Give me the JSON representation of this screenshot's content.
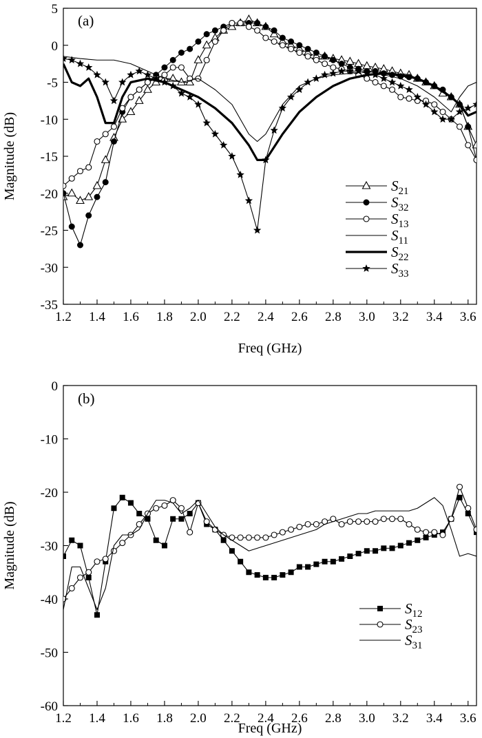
{
  "chart_data": [
    {
      "type": "line",
      "panel_label": "(a)",
      "xlabel": "Freq (GHz)",
      "ylabel": "Magnitude (dB)",
      "xlim": [
        1.2,
        3.65
      ],
      "ylim": [
        -35,
        5
      ],
      "xticks": [
        1.2,
        1.4,
        1.6,
        1.8,
        2.0,
        2.2,
        2.4,
        2.6,
        2.8,
        3.0,
        3.2,
        3.4,
        3.6
      ],
      "yticks": [
        5,
        0,
        -5,
        -10,
        -15,
        -20,
        -25,
        -30,
        -35
      ],
      "xtick_labels": [
        "1.2",
        "1.4",
        "1.6",
        "1.8",
        "2.0",
        "2.2",
        "2.4",
        "2.6",
        "2.8",
        "3.0",
        "3.2",
        "3.4",
        "3.6"
      ],
      "ytick_labels": [
        "5",
        "0",
        "-5",
        "-10",
        "-15",
        "-20",
        "-25",
        "-30",
        "-35"
      ],
      "grid": false,
      "legend_position": "lower-right",
      "series": [
        {
          "name_main": "S",
          "name_sub": "21",
          "marker": "triangle",
          "stroke": "thin",
          "x": [
            1.2,
            1.25,
            1.3,
            1.35,
            1.4,
            1.45,
            1.5,
            1.55,
            1.6,
            1.65,
            1.7,
            1.75,
            1.8,
            1.85,
            1.9,
            1.95,
            2.0,
            2.05,
            2.1,
            2.15,
            2.2,
            2.25,
            2.3,
            2.35,
            2.4,
            2.45,
            2.5,
            2.55,
            2.6,
            2.65,
            2.7,
            2.75,
            2.8,
            2.85,
            2.9,
            2.95,
            3.0,
            3.05,
            3.1,
            3.15,
            3.2,
            3.25,
            3.3,
            3.35,
            3.4,
            3.45,
            3.5,
            3.55,
            3.6,
            3.65
          ],
          "y": [
            -20.5,
            -20,
            -21,
            -20.5,
            -19,
            -15.5,
            -12.5,
            -10,
            -9,
            -7.5,
            -6,
            -5,
            -4.5,
            -4.5,
            -5,
            -5,
            -2,
            0,
            1,
            2,
            2.5,
            3,
            3.5,
            3,
            2.5,
            1.5,
            0.5,
            0,
            -0.5,
            -1,
            -1.5,
            -1.5,
            -1.8,
            -2,
            -2.2,
            -2.5,
            -2.8,
            -3,
            -3.2,
            -3.5,
            -3.8,
            -4,
            -4.5,
            -5,
            -5.5,
            -6.5,
            -7,
            -8,
            -11,
            -13.5
          ]
        },
        {
          "name_main": "S",
          "name_sub": "32",
          "marker": "filled-circle",
          "stroke": "thin",
          "x": [
            1.2,
            1.25,
            1.3,
            1.35,
            1.4,
            1.45,
            1.5,
            1.55,
            1.6,
            1.65,
            1.7,
            1.75,
            1.8,
            1.85,
            1.9,
            1.95,
            2.0,
            2.05,
            2.1,
            2.15,
            2.2,
            2.25,
            2.3,
            2.35,
            2.4,
            2.45,
            2.5,
            2.55,
            2.6,
            2.65,
            2.7,
            2.75,
            2.8,
            2.85,
            2.9,
            2.95,
            3.0,
            3.05,
            3.1,
            3.15,
            3.2,
            3.25,
            3.3,
            3.35,
            3.4,
            3.45,
            3.5,
            3.55,
            3.6,
            3.65
          ],
          "y": [
            -20,
            -24.5,
            -27,
            -23,
            -20.5,
            -18.5,
            -13,
            -9,
            -7,
            -6,
            -5,
            -4,
            -3,
            -2,
            -1,
            -0.5,
            0.5,
            1.5,
            2,
            2.5,
            3,
            3,
            3,
            3,
            2.5,
            2,
            1,
            0.5,
            0,
            -0.5,
            -1,
            -1.5,
            -2,
            -2.5,
            -3,
            -3.2,
            -3.5,
            -3.5,
            -3.8,
            -4,
            -4.2,
            -4.3,
            -4.5,
            -5,
            -5.5,
            -6,
            -7,
            -8,
            -11,
            -15.5
          ]
        },
        {
          "name_main": "S",
          "name_sub": "13",
          "marker": "open-circle",
          "stroke": "thin",
          "x": [
            1.2,
            1.25,
            1.3,
            1.35,
            1.4,
            1.45,
            1.5,
            1.55,
            1.6,
            1.65,
            1.7,
            1.75,
            1.8,
            1.85,
            1.9,
            1.95,
            2.0,
            2.05,
            2.1,
            2.15,
            2.2,
            2.25,
            2.3,
            2.35,
            2.4,
            2.45,
            2.5,
            2.55,
            2.6,
            2.65,
            2.7,
            2.75,
            2.8,
            2.85,
            2.9,
            2.95,
            3.0,
            3.05,
            3.1,
            3.15,
            3.2,
            3.25,
            3.3,
            3.35,
            3.4,
            3.45,
            3.5,
            3.55,
            3.6,
            3.65
          ],
          "y": [
            -19,
            -18,
            -17,
            -16.5,
            -13,
            -12,
            -11,
            -8.5,
            -7,
            -6,
            -5,
            -4.5,
            -4,
            -3,
            -3,
            -4.5,
            -4.5,
            -2,
            0.5,
            2,
            3,
            3,
            2.5,
            2,
            1,
            0.5,
            0,
            -0.5,
            -1,
            -1.5,
            -2,
            -2.5,
            -3,
            -3.2,
            -3.5,
            -4,
            -4.5,
            -5,
            -5.5,
            -6,
            -7,
            -7.2,
            -7.5,
            -7.5,
            -8,
            -9,
            -10,
            -11,
            -13.5,
            -15.5
          ]
        },
        {
          "name_main": "S",
          "name_sub": "11",
          "marker": "none",
          "stroke": "thin",
          "x": [
            1.2,
            1.3,
            1.4,
            1.5,
            1.6,
            1.7,
            1.8,
            1.9,
            2.0,
            2.1,
            2.2,
            2.3,
            2.35,
            2.4,
            2.5,
            2.6,
            2.7,
            2.8,
            2.9,
            3.0,
            3.1,
            3.2,
            3.3,
            3.4,
            3.5,
            3.55,
            3.6,
            3.65
          ],
          "y": [
            -1.5,
            -1.8,
            -2,
            -2,
            -2.5,
            -3.5,
            -4.5,
            -5,
            -4.5,
            -6,
            -8,
            -12,
            -13,
            -12,
            -8,
            -5.5,
            -4.5,
            -4,
            -3.8,
            -3.5,
            -4,
            -4.5,
            -5.5,
            -7,
            -9,
            -7,
            -5.5,
            -5
          ]
        },
        {
          "name_main": "S",
          "name_sub": "22",
          "marker": "none",
          "stroke": "thick",
          "x": [
            1.2,
            1.25,
            1.3,
            1.35,
            1.4,
            1.45,
            1.5,
            1.55,
            1.6,
            1.7,
            1.8,
            1.9,
            2.0,
            2.1,
            2.2,
            2.3,
            2.35,
            2.4,
            2.5,
            2.6,
            2.7,
            2.8,
            2.9,
            3.0,
            3.1,
            3.2,
            3.3,
            3.4,
            3.5,
            3.55,
            3.6,
            3.65
          ],
          "y": [
            -2.5,
            -5,
            -5.5,
            -4.5,
            -7,
            -10.5,
            -10.5,
            -7,
            -5,
            -4.5,
            -5,
            -6,
            -7,
            -8.5,
            -10.5,
            -13.5,
            -15.5,
            -15.5,
            -12,
            -9,
            -7,
            -5.5,
            -4.5,
            -4,
            -3.8,
            -4,
            -4.5,
            -5.5,
            -7,
            -8,
            -9.5,
            -9
          ]
        },
        {
          "name_main": "S",
          "name_sub": "33",
          "marker": "star",
          "stroke": "thin",
          "x": [
            1.2,
            1.25,
            1.3,
            1.35,
            1.4,
            1.45,
            1.5,
            1.55,
            1.6,
            1.65,
            1.7,
            1.75,
            1.8,
            1.85,
            1.9,
            1.95,
            2.0,
            2.05,
            2.1,
            2.15,
            2.2,
            2.25,
            2.3,
            2.35,
            2.4,
            2.45,
            2.5,
            2.55,
            2.6,
            2.65,
            2.7,
            2.75,
            2.8,
            2.85,
            2.9,
            2.95,
            3.0,
            3.05,
            3.1,
            3.15,
            3.2,
            3.25,
            3.3,
            3.35,
            3.4,
            3.45,
            3.5,
            3.55,
            3.6,
            3.65
          ],
          "y": [
            -1.8,
            -2,
            -2.5,
            -3,
            -4,
            -5,
            -7.5,
            -5,
            -4,
            -3.5,
            -4,
            -4.5,
            -5,
            -5.5,
            -6.5,
            -7,
            -8,
            -10.5,
            -12,
            -13.5,
            -15,
            -17.5,
            -21,
            -25,
            -15.5,
            -11.5,
            -8.5,
            -7,
            -6,
            -5,
            -4.5,
            -4,
            -3.8,
            -3.5,
            -3.5,
            -3.5,
            -3.8,
            -4,
            -4.5,
            -5,
            -5.5,
            -6,
            -7,
            -8,
            -9,
            -10,
            -10,
            -9,
            -8.5,
            -8
          ]
        }
      ]
    },
    {
      "type": "line",
      "panel_label": "(b)",
      "xlabel": "Freq (GHz)",
      "ylabel": "Magnitude (dB)",
      "xlim": [
        1.2,
        3.65
      ],
      "ylim": [
        -60,
        0
      ],
      "xticks": [
        1.2,
        1.4,
        1.6,
        1.8,
        2.0,
        2.2,
        2.4,
        2.6,
        2.8,
        3.0,
        3.2,
        3.4,
        3.6
      ],
      "yticks": [
        0,
        -10,
        -20,
        -30,
        -40,
        -50,
        -60
      ],
      "xtick_labels": [
        "1.2",
        "1.4",
        "1.6",
        "1.8",
        "2.0",
        "2.2",
        "2.4",
        "2.6",
        "2.8",
        "3.0",
        "3.2",
        "3.4",
        "3.6"
      ],
      "ytick_labels": [
        "0",
        "-10",
        "-20",
        "-30",
        "-40",
        "-50",
        "-60"
      ],
      "grid": false,
      "legend_position": "lower-right",
      "series": [
        {
          "name_main": "S",
          "name_sub": "12",
          "marker": "filled-square",
          "stroke": "thin",
          "x": [
            1.2,
            1.25,
            1.3,
            1.35,
            1.4,
            1.45,
            1.5,
            1.55,
            1.6,
            1.65,
            1.7,
            1.75,
            1.8,
            1.85,
            1.9,
            1.95,
            2.0,
            2.05,
            2.1,
            2.15,
            2.2,
            2.25,
            2.3,
            2.35,
            2.4,
            2.45,
            2.5,
            2.55,
            2.6,
            2.65,
            2.7,
            2.75,
            2.8,
            2.85,
            2.9,
            2.95,
            3.0,
            3.05,
            3.1,
            3.15,
            3.2,
            3.25,
            3.3,
            3.35,
            3.4,
            3.45,
            3.5,
            3.55,
            3.6,
            3.65
          ],
          "y": [
            -32,
            -29,
            -30,
            -36,
            -43,
            -33,
            -23,
            -21,
            -22,
            -24,
            -25,
            -29,
            -30,
            -25,
            -25,
            -24,
            -22,
            -26,
            -27,
            -29,
            -31,
            -33,
            -35,
            -35.5,
            -36,
            -36,
            -35.5,
            -35,
            -34,
            -34,
            -33.5,
            -33,
            -33,
            -32.5,
            -32,
            -31.5,
            -31,
            -31,
            -30.5,
            -30.5,
            -30,
            -29.5,
            -29,
            -28.5,
            -28,
            -27.5,
            -25,
            -21,
            -24,
            -27.5
          ]
        },
        {
          "name_main": "S",
          "name_sub": "23",
          "marker": "open-circle",
          "stroke": "thin",
          "x": [
            1.2,
            1.25,
            1.3,
            1.35,
            1.4,
            1.45,
            1.5,
            1.55,
            1.6,
            1.65,
            1.7,
            1.75,
            1.8,
            1.85,
            1.9,
            1.95,
            2.0,
            2.05,
            2.1,
            2.15,
            2.2,
            2.25,
            2.3,
            2.35,
            2.4,
            2.45,
            2.5,
            2.55,
            2.6,
            2.65,
            2.7,
            2.75,
            2.8,
            2.85,
            2.9,
            2.95,
            3.0,
            3.05,
            3.1,
            3.15,
            3.2,
            3.25,
            3.3,
            3.35,
            3.4,
            3.45,
            3.5,
            3.55,
            3.6,
            3.65
          ],
          "y": [
            -40,
            -38,
            -36,
            -35,
            -33,
            -32.5,
            -31,
            -29.5,
            -28,
            -26,
            -24,
            -23,
            -22.5,
            -21.5,
            -23,
            -27.5,
            -22,
            -25.5,
            -27,
            -28,
            -28.5,
            -28.5,
            -28.5,
            -28.5,
            -28.5,
            -28,
            -27.5,
            -27,
            -26.5,
            -26,
            -26,
            -25.5,
            -25,
            -26,
            -25.5,
            -25.5,
            -25.5,
            -25.5,
            -25,
            -25,
            -25,
            -26,
            -27,
            -27.5,
            -27.5,
            -28,
            -25,
            -19,
            -23,
            -27
          ]
        },
        {
          "name_main": "S",
          "name_sub": "31",
          "marker": "none",
          "stroke": "thin",
          "x": [
            1.2,
            1.25,
            1.3,
            1.35,
            1.4,
            1.45,
            1.5,
            1.55,
            1.6,
            1.65,
            1.7,
            1.75,
            1.8,
            1.85,
            1.9,
            1.95,
            2.0,
            2.05,
            2.1,
            2.15,
            2.2,
            2.25,
            2.3,
            2.35,
            2.4,
            2.45,
            2.5,
            2.55,
            2.6,
            2.65,
            2.7,
            2.75,
            2.8,
            2.85,
            2.9,
            2.95,
            3.0,
            3.05,
            3.1,
            3.15,
            3.2,
            3.25,
            3.3,
            3.35,
            3.4,
            3.45,
            3.5,
            3.55,
            3.6,
            3.65
          ],
          "y": [
            -42,
            -34,
            -34,
            -38,
            -42,
            -38,
            -30,
            -28,
            -28,
            -27,
            -24,
            -21.5,
            -21.5,
            -22,
            -24,
            -23,
            -21.5,
            -24,
            -26.5,
            -28,
            -29,
            -30,
            -31,
            -30.5,
            -30,
            -29.5,
            -29,
            -28.5,
            -28,
            -27.5,
            -27,
            -26,
            -25.5,
            -25,
            -24.5,
            -24,
            -24,
            -23.5,
            -23.5,
            -23.5,
            -23.5,
            -23.5,
            -23,
            -22,
            -21,
            -22.5,
            -27,
            -32,
            -31.5,
            -32
          ]
        }
      ]
    }
  ]
}
